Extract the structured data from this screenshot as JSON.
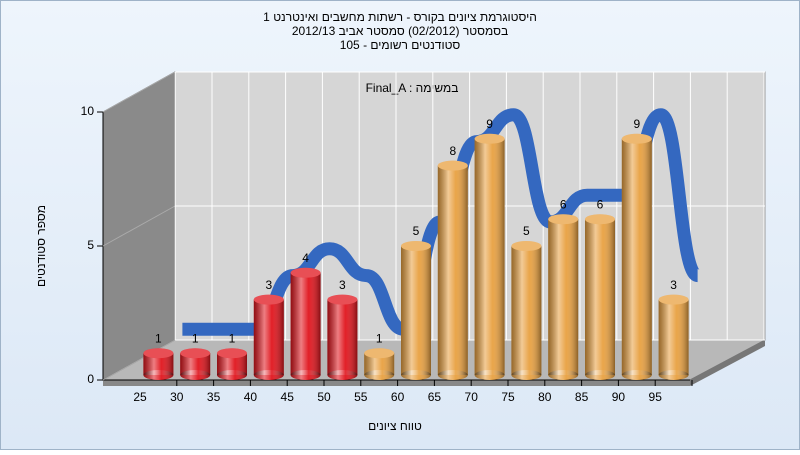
{
  "chart_data": {
    "type": "bar",
    "title_lines": [
      "היסטוגרמת ציונים בקורס - רשתות מחשבים ואינטרנט 1",
      "בסמסטר  (02/2012)  סמסטר אביב 2012/13",
      "סטודנטים רשומים - 105"
    ],
    "annotation": "Final_A : במשימה",
    "x_label": "טווח ציונים",
    "y_label": "מספר סטודנטים",
    "categories": [
      "25",
      "30",
      "35",
      "40",
      "45",
      "50",
      "55",
      "60",
      "65",
      "70",
      "75",
      "80",
      "85",
      "90",
      "95"
    ],
    "values": [
      1,
      1,
      1,
      3,
      4,
      3,
      1,
      5,
      8,
      9,
      5,
      6,
      6,
      9,
      3
    ],
    "colors": [
      "#e0141c",
      "#e0141c",
      "#e0141c",
      "#e0141c",
      "#e0141c",
      "#e0141c",
      "#e8a040",
      "#e8a040",
      "#e8a040",
      "#e8a040",
      "#e8a040",
      "#e8a040",
      "#e8a040",
      "#e8a040",
      "#e8a040"
    ],
    "line_color": "#3468c0",
    "ylim": [
      0,
      10
    ],
    "yticks": [
      0,
      5,
      10
    ],
    "grid": true
  }
}
